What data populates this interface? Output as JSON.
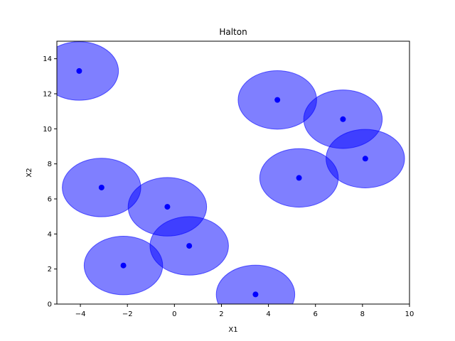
{
  "chart_data": {
    "type": "scatter",
    "title": "Halton",
    "xlabel": "X1",
    "ylabel": "X2",
    "xlim": [
      -5,
      10
    ],
    "ylim": [
      0,
      15
    ],
    "xticks": [
      -4,
      -2,
      0,
      2,
      4,
      6,
      8,
      10
    ],
    "yticks": [
      0,
      2,
      4,
      6,
      8,
      10,
      12,
      14
    ],
    "grid": false,
    "colors": {
      "point": "#0000ff",
      "circle_fill": "#0000ff",
      "circle_alpha": 0.5
    },
    "circle_radius": 1.67,
    "points": [
      {
        "x": -4.05,
        "y": 13.3
      },
      {
        "x": 4.38,
        "y": 11.65
      },
      {
        "x": 7.17,
        "y": 10.55
      },
      {
        "x": 8.12,
        "y": 8.3
      },
      {
        "x": 5.3,
        "y": 7.2
      },
      {
        "x": -3.1,
        "y": 6.65
      },
      {
        "x": -0.3,
        "y": 5.55
      },
      {
        "x": 0.63,
        "y": 3.32
      },
      {
        "x": -2.17,
        "y": 2.2
      },
      {
        "x": 3.45,
        "y": 0.55
      }
    ]
  }
}
